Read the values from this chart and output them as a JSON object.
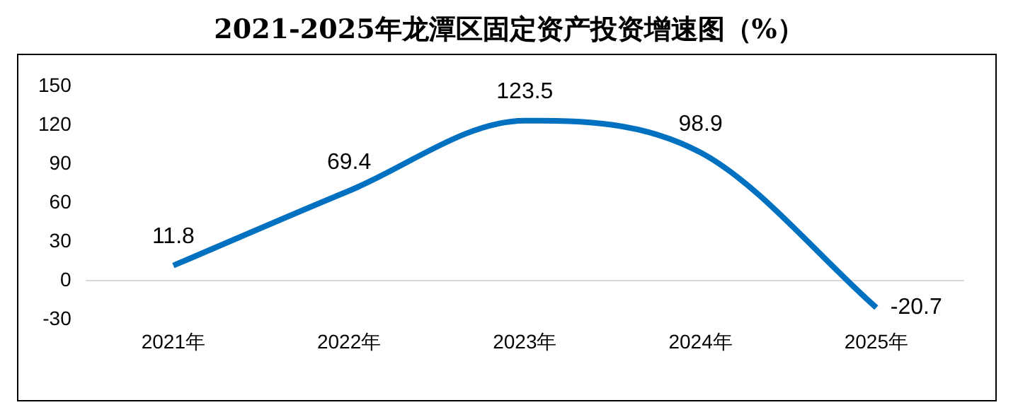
{
  "chart_data": {
    "type": "line",
    "title": "2021-2025年龙潭区固定资产投资增速图（%）",
    "categories": [
      "2021年",
      "2022年",
      "2023年",
      "2024年",
      "2025年"
    ],
    "series": [
      {
        "color": "#0070c0",
        "values": [
          11.8,
          69.4,
          123.5,
          98.9,
          -20.7
        ]
      }
    ],
    "ylim": [
      -30,
      150
    ],
    "yticks": [
      -30,
      0,
      30,
      60,
      90,
      120,
      150
    ],
    "grid": false,
    "legend": false,
    "data_labels": true,
    "marker": "none",
    "line_style": "solid"
  }
}
